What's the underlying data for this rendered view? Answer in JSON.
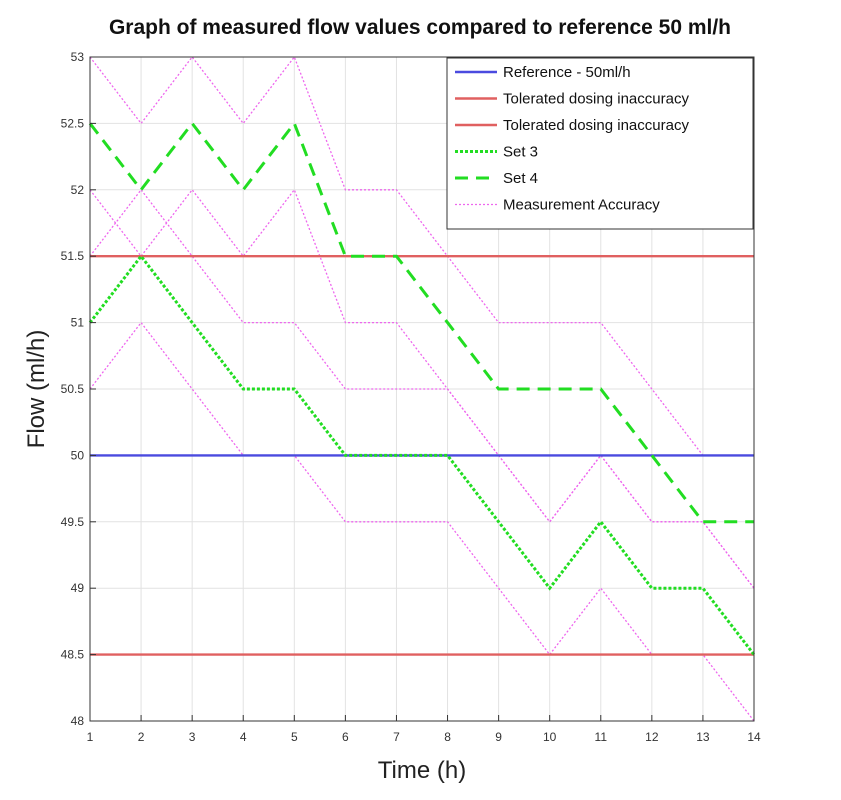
{
  "chart_data": {
    "type": "line",
    "title": "Graph of measured flow values compared to reference 50 ml/h",
    "xlabel": "Time (h)",
    "ylabel": "Flow (ml/h)",
    "xlim": [
      1,
      14
    ],
    "ylim": [
      48,
      53
    ],
    "xticks": [
      1,
      2,
      3,
      4,
      5,
      6,
      7,
      8,
      9,
      10,
      11,
      12,
      13,
      14
    ],
    "yticks": [
      48,
      48.5,
      49,
      49.5,
      50,
      50.5,
      51,
      51.5,
      52,
      52.5,
      53
    ],
    "ytick_labels": [
      "48",
      "48.5",
      "49",
      "49.5",
      "50",
      "50.5",
      "51",
      "51.5",
      "52",
      "52.5",
      "53"
    ],
    "grid": true,
    "legend_position": "top-right",
    "x": [
      1,
      2,
      3,
      4,
      5,
      6,
      7,
      8,
      9,
      10,
      11,
      12,
      13,
      14
    ],
    "series": [
      {
        "name": "Reference - 50ml/h",
        "style": "solid",
        "color": "#4a4adf",
        "values": [
          50,
          50,
          50,
          50,
          50,
          50,
          50,
          50,
          50,
          50,
          50,
          50,
          50,
          50
        ]
      },
      {
        "name": "Tolerated dosing inaccuracy",
        "style": "solid",
        "color": "#e06060",
        "values": [
          51.5,
          51.5,
          51.5,
          51.5,
          51.5,
          51.5,
          51.5,
          51.5,
          51.5,
          51.5,
          51.5,
          51.5,
          51.5,
          51.5
        ]
      },
      {
        "name": "Tolerated dosing inaccuracy",
        "style": "solid",
        "color": "#e06060",
        "values": [
          48.5,
          48.5,
          48.5,
          48.5,
          48.5,
          48.5,
          48.5,
          48.5,
          48.5,
          48.5,
          48.5,
          48.5,
          48.5,
          48.5
        ]
      },
      {
        "name": "Set 3",
        "style": "dotted",
        "color": "#22dd22",
        "values": [
          51,
          51.5,
          51,
          50.5,
          50.5,
          50,
          50,
          50,
          49.5,
          49,
          49.5,
          49,
          49,
          48.5
        ]
      },
      {
        "name": "Set 4",
        "style": "dashed",
        "color": "#22dd22",
        "values": [
          52.5,
          52,
          52.5,
          52,
          52.5,
          51.5,
          51.5,
          51,
          50.5,
          50.5,
          50.5,
          50,
          49.5,
          49.5
        ]
      },
      {
        "name": "Measurement Accuracy",
        "style": "fine-dotted",
        "color": "#ee66ee",
        "values": [
          52,
          51.5,
          52,
          51.5,
          52,
          51,
          51,
          50.5,
          50,
          49.5,
          50,
          49.5,
          49.5,
          49
        ]
      },
      {
        "name": "Measurement Accuracy",
        "style": "fine-dotted",
        "color": "#ee66ee",
        "values": [
          50.5,
          51,
          50.5,
          50,
          50,
          49.5,
          49.5,
          49.5,
          49,
          48.5,
          49,
          48.5,
          48.5,
          48
        ]
      },
      {
        "name": "Measurement Accuracy",
        "style": "fine-dotted",
        "color": "#ee66ee",
        "values": [
          53,
          52.5,
          53,
          52.5,
          53,
          52,
          52,
          51.5,
          51,
          51,
          51,
          50.5,
          50,
          50
        ]
      },
      {
        "name": "Measurement Accuracy",
        "style": "fine-dotted",
        "color": "#ee66ee",
        "values": [
          51.5,
          52,
          51.5,
          51,
          51,
          50.5,
          50.5,
          50.5,
          50,
          49.5,
          50,
          49.5,
          49.5,
          49
        ]
      }
    ],
    "legend": [
      {
        "label": "Reference - 50ml/h",
        "style": "solid",
        "color": "#4a4adf"
      },
      {
        "label": "Tolerated dosing inaccuracy",
        "style": "solid",
        "color": "#e06060"
      },
      {
        "label": "Tolerated dosing inaccuracy",
        "style": "solid",
        "color": "#e06060"
      },
      {
        "label": "Set 3",
        "style": "dotted",
        "color": "#22dd22"
      },
      {
        "label": "Set 4",
        "style": "dashed",
        "color": "#22dd22"
      },
      {
        "label": "Measurement Accuracy",
        "style": "fine-dotted",
        "color": "#ee66ee"
      }
    ]
  }
}
